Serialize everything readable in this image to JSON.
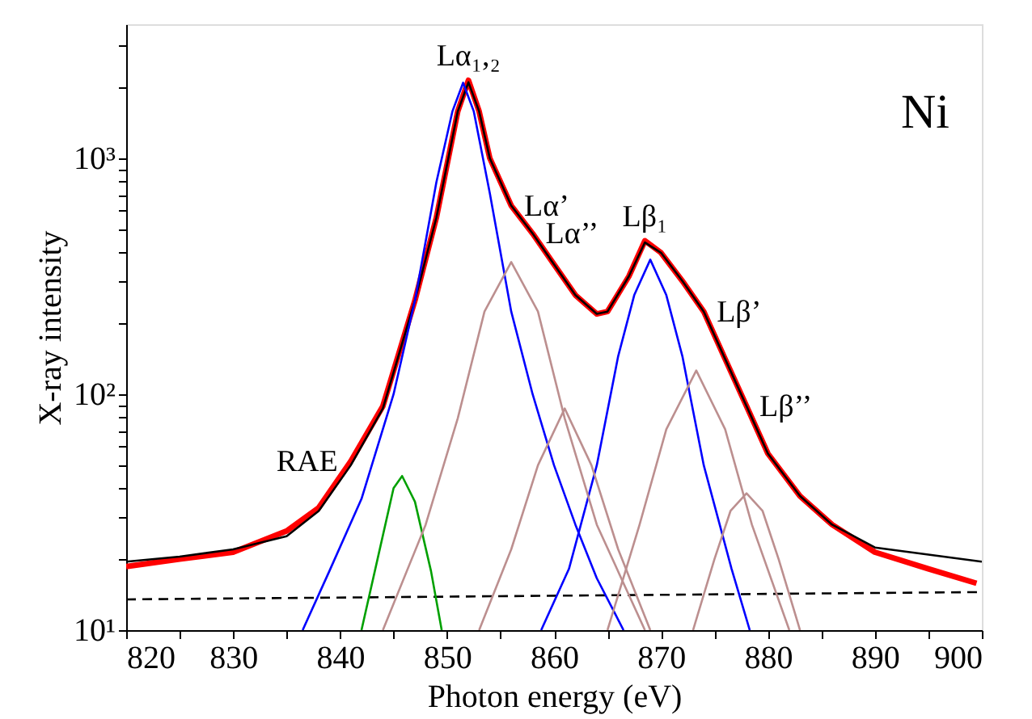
{
  "chart_data": {
    "type": "line",
    "xlabel": "Photon energy (eV)",
    "ylabel": "X-ray intensity",
    "log": "y",
    "grid": false,
    "marker": "none",
    "xlim": [
      820,
      900
    ],
    "xticks": [
      820,
      {
        "value": 825,
        "label": null
      },
      830,
      {
        "value": 835,
        "label": null
      },
      840,
      {
        "value": 845,
        "label": null
      },
      850,
      {
        "value": 855,
        "label": null
      },
      860,
      {
        "value": 865,
        "label": null
      },
      870,
      {
        "value": 875,
        "label": null
      },
      880,
      {
        "value": 885,
        "label": null
      },
      890,
      {
        "value": 895,
        "label": null
      },
      900
    ],
    "ylim": [
      10,
      3700
    ],
    "yticks": [
      {
        "value": 10,
        "label": "10¹"
      },
      {
        "value": 20,
        "label": null
      },
      {
        "value": 30,
        "label": null
      },
      {
        "value": 40,
        "label": null
      },
      {
        "value": 50,
        "label": null
      },
      {
        "value": 60,
        "label": null
      },
      {
        "value": 70,
        "label": null
      },
      {
        "value": 80,
        "label": null
      },
      {
        "value": 90,
        "label": null
      },
      {
        "value": 100,
        "label": "10²"
      },
      {
        "value": 200,
        "label": null
      },
      {
        "value": 300,
        "label": null
      },
      {
        "value": 400,
        "label": null
      },
      {
        "value": 500,
        "label": null
      },
      {
        "value": 600,
        "label": null
      },
      {
        "value": 700,
        "label": null
      },
      {
        "value": 800,
        "label": null
      },
      {
        "value": 900,
        "label": null
      },
      {
        "value": 1000,
        "label": "10³"
      },
      {
        "value": 2000,
        "label": null
      },
      {
        "value": 3000,
        "label": null
      }
    ],
    "series": [
      {
        "color": "#ff0000",
        "line_style": "solid",
        "x": [
          820,
          825,
          830,
          835,
          838,
          841,
          844,
          847,
          849,
          851,
          852,
          853,
          854,
          856,
          858,
          860,
          862,
          864,
          865,
          867,
          868.5,
          870,
          872,
          874,
          876,
          878,
          880,
          883,
          886,
          890,
          895,
          899.5
        ],
        "values": [
          18.6,
          20,
          21.4,
          26.3,
          33,
          52,
          89,
          250,
          560,
          1580,
          2140,
          1580,
          1000,
          630,
          480,
          355,
          263,
          219,
          224,
          316,
          447,
          398,
          302,
          224,
          141,
          89,
          56,
          37,
          28,
          21.4,
          18.2,
          15.8
        ]
      },
      {
        "color": "#000000",
        "line_style": "solid",
        "x": [
          820,
          825,
          830,
          835,
          838,
          841,
          844,
          847,
          849,
          851,
          852,
          853,
          854,
          856,
          858,
          860,
          862,
          864,
          865,
          867,
          868.5,
          870,
          872,
          874,
          876,
          878,
          880,
          883,
          886,
          890,
          895,
          900
        ],
        "values": [
          19.5,
          20.5,
          22,
          25,
          32,
          50,
          87,
          250,
          560,
          1580,
          2100,
          1580,
          1000,
          630,
          480,
          355,
          263,
          219,
          224,
          316,
          440,
          398,
          302,
          224,
          141,
          89,
          56,
          37,
          28,
          22.4,
          20.9,
          19.5
        ]
      },
      {
        "color": "#000000",
        "line_style": "dashed",
        "x": [
          820,
          900
        ],
        "values": [
          13.5,
          14.5
        ]
      },
      {
        "color": "#0000ff",
        "line_style": "solid",
        "x": [
          836.5,
          839,
          842,
          845,
          847,
          849,
          850.5,
          851.5,
          852.5,
          854,
          856,
          858,
          860,
          862,
          864,
          866.5
        ],
        "values": [
          10,
          17.8,
          36,
          100,
          250,
          790,
          1580,
          2090,
          1580,
          710,
          224,
          100,
          50,
          28,
          16.6,
          10
        ]
      },
      {
        "color": "#0000ff",
        "line_style": "solid",
        "x": [
          858.8,
          861.4,
          864,
          866,
          867.5,
          869,
          870.5,
          872,
          874,
          876.6,
          878.3
        ],
        "values": [
          10,
          18.2,
          50,
          145,
          263,
          372,
          263,
          145,
          50,
          18.2,
          10
        ]
      },
      {
        "color": "#00a000",
        "line_style": "solid",
        "x": [
          842,
          843.5,
          845,
          845.8,
          847,
          848.5,
          849.5
        ],
        "values": [
          10,
          20,
          40,
          45,
          35,
          17.8,
          10
        ]
      },
      {
        "color": "#bc8f8f",
        "line_style": "solid",
        "x": [
          844,
          848,
          851,
          853.5,
          856,
          858.5,
          861,
          864,
          868.5
        ],
        "values": [
          10,
          28,
          79,
          224,
          363,
          224,
          79,
          28,
          10
        ]
      },
      {
        "color": "#bc8f8f",
        "line_style": "solid",
        "x": [
          853,
          856,
          858.5,
          861,
          863.5,
          866,
          869
        ],
        "values": [
          10,
          22,
          50,
          87,
          50,
          22,
          10
        ]
      },
      {
        "color": "#bc8f8f",
        "line_style": "solid",
        "x": [
          865,
          868,
          870.5,
          873.3,
          876,
          878.5,
          882
        ],
        "values": [
          10,
          28,
          71,
          126,
          71,
          28,
          10
        ]
      },
      {
        "color": "#bc8f8f",
        "line_style": "solid",
        "x": [
          873,
          875,
          876.5,
          878,
          879.5,
          881,
          883
        ],
        "values": [
          10,
          20,
          32,
          38,
          32,
          20,
          10
        ]
      }
    ],
    "annotations": [
      {
        "text": "Lα₁,₂",
        "x": 852,
        "y": 2140
      },
      {
        "text": "Lα’",
        "x": 856,
        "y": 630
      },
      {
        "text": "Lα’’",
        "x": 858,
        "y": 480
      },
      {
        "text": "Lβ₁",
        "x": 868.5,
        "y": 447
      },
      {
        "text": "Lβ’",
        "x": 874,
        "y": 224
      },
      {
        "text": "Lβ’’",
        "x": 878,
        "y": 89
      },
      {
        "text": "RAE",
        "x": 841,
        "y": 52
      },
      "Ni"
    ]
  }
}
